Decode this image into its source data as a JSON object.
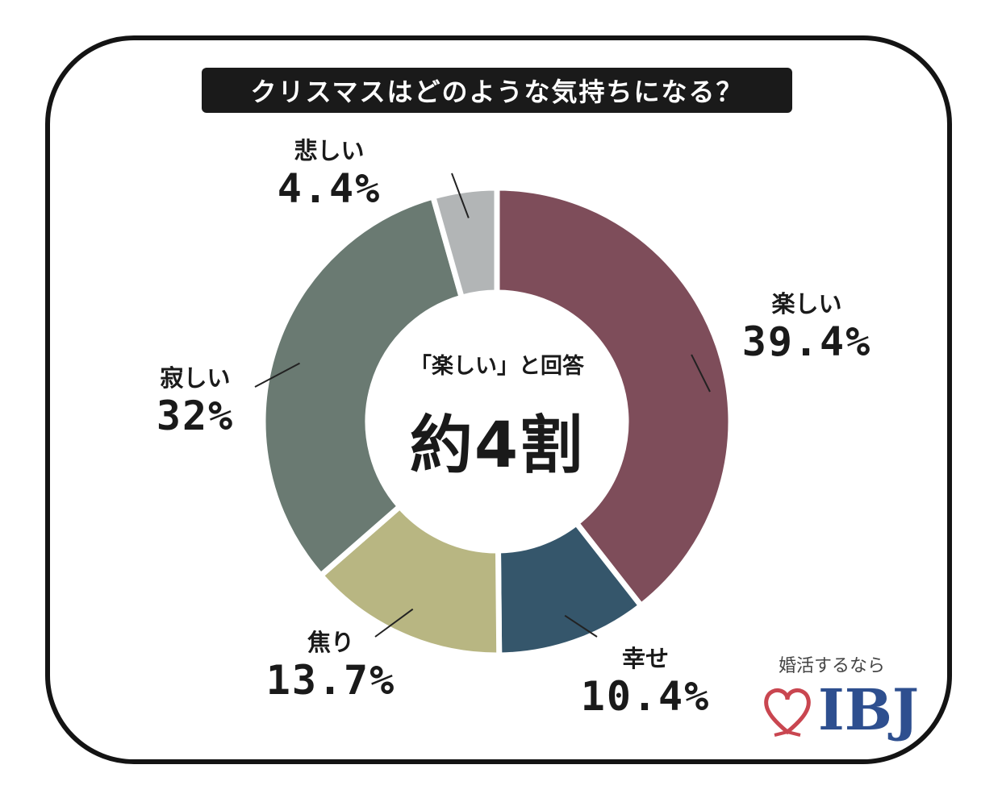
{
  "title": "クリスマスはどのような気持ちになる？",
  "center": {
    "sub": "「楽しい」と回答",
    "main": "約4割"
  },
  "logo": {
    "tagline": "婚活するなら",
    "brand": "IBJ"
  },
  "chart_data": {
    "type": "pie",
    "donut": true,
    "slices": [
      {
        "name": "楽しい",
        "value": 39.4,
        "label": "39.4%",
        "color": "#7e4d5a"
      },
      {
        "name": "幸せ",
        "value": 10.4,
        "label": "10.4%",
        "color": "#35566b"
      },
      {
        "name": "焦り",
        "value": 13.7,
        "label": "13.7%",
        "color": "#b8b682"
      },
      {
        "name": "寂しい",
        "value": 32,
        "label": "32%",
        "color": "#6a7a72"
      },
      {
        "name": "悲しい",
        "value": 4.4,
        "label": "4.4%",
        "color": "#b2b5b6"
      }
    ]
  },
  "colors": {
    "frame": "#141414",
    "title_bg": "#1a1a1a",
    "logo_heart": "#c94650",
    "logo_text": "#2e4f8f"
  }
}
